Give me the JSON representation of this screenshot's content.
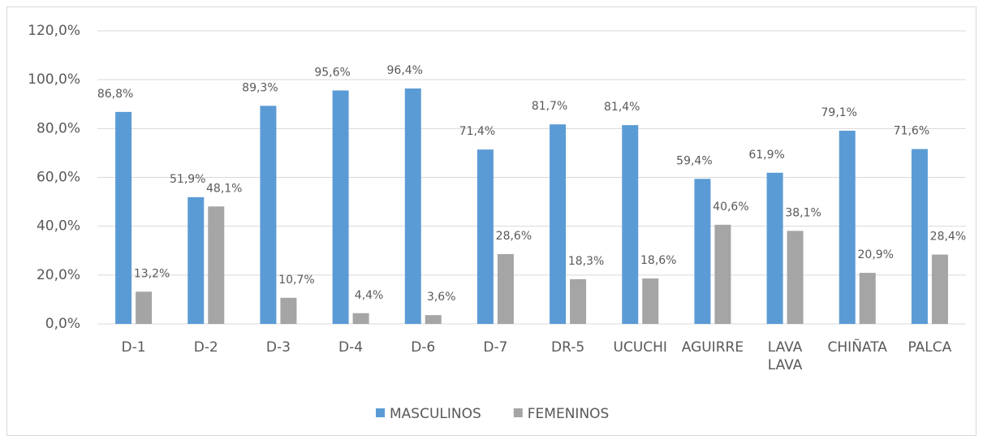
{
  "chart_data": {
    "type": "bar",
    "categories": [
      "D-1",
      "D-2",
      "D-3",
      "D-4",
      "D-6",
      "D-7",
      "DR-5",
      "UCUCHI",
      "AGUIRRE",
      "LAVA LAVA",
      "CHIÑATA",
      "PALCA"
    ],
    "series": [
      {
        "name": "MASCULINOS",
        "color": "#5b9bd5",
        "values": [
          86.8,
          51.9,
          89.3,
          95.6,
          96.4,
          71.4,
          81.7,
          81.4,
          59.4,
          61.9,
          79.1,
          71.6
        ],
        "value_labels": [
          "86,8%",
          "51,9%",
          "89,3%",
          "95,6%",
          "96,4%",
          "71,4%",
          "81,7%",
          "81,4%",
          "59,4%",
          "61,9%",
          "79,1%",
          "71,6%"
        ]
      },
      {
        "name": "FEMENINOS",
        "color": "#a5a5a5",
        "values": [
          13.2,
          48.1,
          10.7,
          4.4,
          3.6,
          28.6,
          18.3,
          18.6,
          40.6,
          38.1,
          20.9,
          28.4
        ],
        "value_labels": [
          "13,2%",
          "48,1%",
          "10,7%",
          "4,4%",
          "3,6%",
          "28,6%",
          "18,3%",
          "18,6%",
          "40,6%",
          "38,1%",
          "20,9%",
          "28,4%"
        ]
      }
    ],
    "ylim": [
      0,
      120
    ],
    "yticks": [
      {
        "value": 0,
        "label": "0,0%"
      },
      {
        "value": 20,
        "label": "20,0%"
      },
      {
        "value": 40,
        "label": "40,0%"
      },
      {
        "value": 60,
        "label": "60,0%"
      },
      {
        "value": 80,
        "label": "80,0%"
      },
      {
        "value": 100,
        "label": "100,0%"
      },
      {
        "value": 120,
        "label": "120,0%"
      }
    ],
    "grid": true,
    "legend": "bottom"
  }
}
